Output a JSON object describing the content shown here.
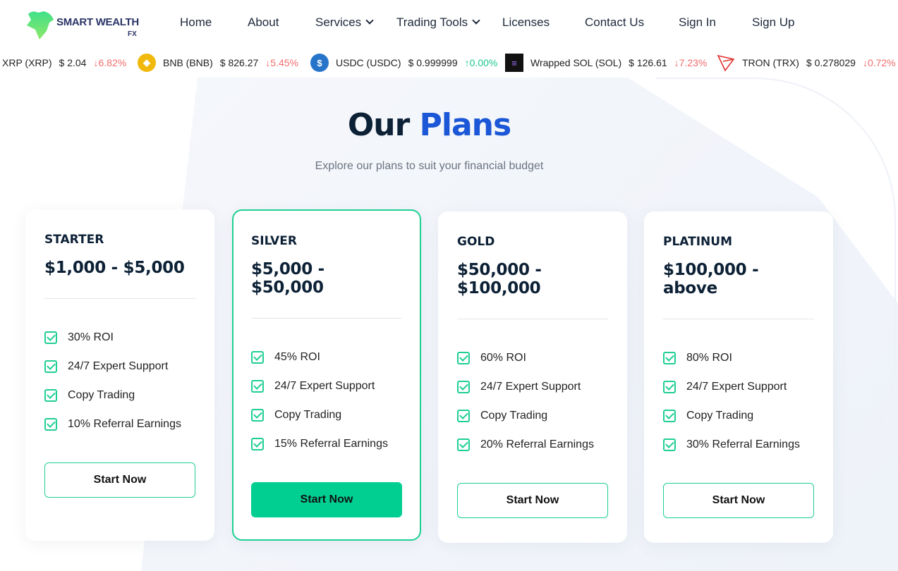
{
  "brand": {
    "name": "SMART WEALTH",
    "suffix": "FX"
  },
  "nav": {
    "home": "Home",
    "about": "About",
    "services": "Services",
    "trading_tools": "Trading Tools",
    "licenses": "Licenses",
    "contact": "Contact Us",
    "sign_in": "Sign In",
    "sign_up": "Sign Up"
  },
  "ticker": [
    {
      "name": "XRP (XRP)",
      "price": "$ 2.04",
      "change": "6.82%",
      "dir": "down"
    },
    {
      "name": "BNB (BNB)",
      "price": "$ 826.27",
      "change": "5.45%",
      "dir": "down"
    },
    {
      "name": "USDC (USDC)",
      "price": "$ 0.999999",
      "change": "0.00%",
      "dir": "up"
    },
    {
      "name": "Wrapped SOL (SOL)",
      "price": "$ 126.61",
      "change": "7.23%",
      "dir": "down"
    },
    {
      "name": "TRON (TRX)",
      "price": "$ 0.278029",
      "change": "0.72%",
      "dir": "down"
    }
  ],
  "heading": {
    "part1": "Our",
    "part2": "Plans",
    "subtitle": "Explore our plans to suit your financial budget"
  },
  "plans": [
    {
      "name": "STARTER",
      "range": "$1,000 - $5,000",
      "features": [
        "30% ROI",
        "24/7 Expert Support",
        "Copy Trading",
        "10% Referral Earnings"
      ],
      "button": "Start Now"
    },
    {
      "name": "SILVER",
      "range": "$5,000 - $50,000",
      "features": [
        "45% ROI",
        "24/7 Expert Support",
        "Copy Trading",
        "15% Referral Earnings"
      ],
      "button": "Start Now"
    },
    {
      "name": "GOLD",
      "range": "$50,000 - $100,000",
      "features": [
        "60% ROI",
        "24/7 Expert Support",
        "Copy Trading",
        "20% Referral Earnings"
      ],
      "button": "Start Now"
    },
    {
      "name": "PLATINUM",
      "range": "$100,000 - above",
      "features": [
        "80% ROI",
        "24/7 Expert Support",
        "Copy Trading",
        "30% Referral Earnings"
      ],
      "button": "Start Now"
    }
  ],
  "colors": {
    "accent": "#00cf91",
    "blue": "#1b57d6",
    "down": "#f36c6c",
    "up": "#1fc98c"
  }
}
